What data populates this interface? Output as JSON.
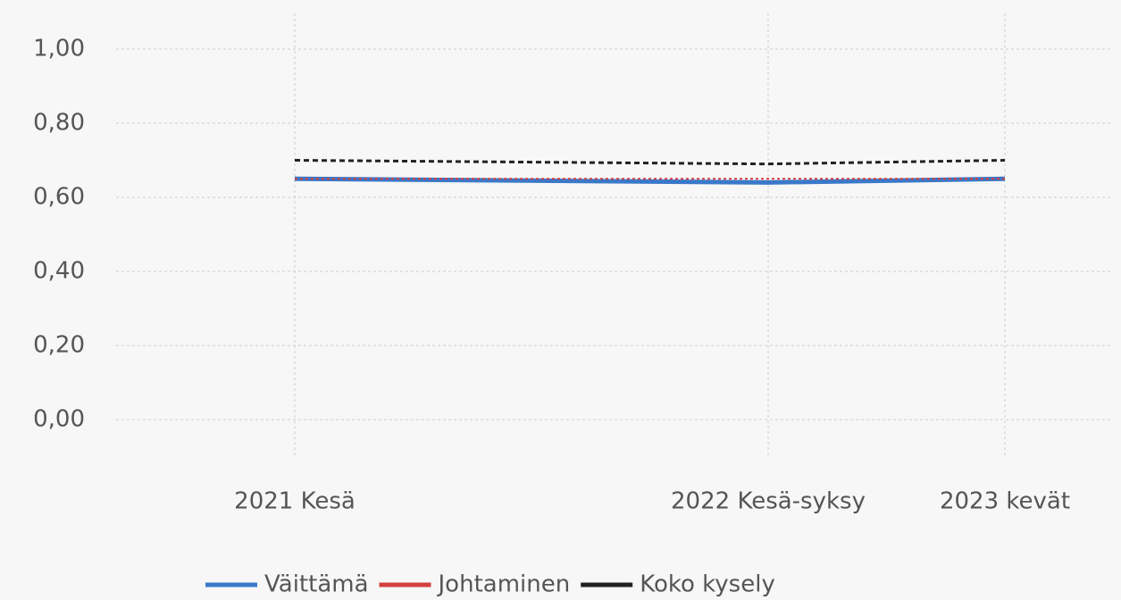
{
  "chart_data": {
    "type": "line",
    "categories": [
      "2021 Kesä",
      "2022 Kesä-syksy",
      "2023 kevät"
    ],
    "series": [
      {
        "name": "Väittämä",
        "color": "#3a78c9",
        "values": [
          0.65,
          0.64,
          0.65
        ]
      },
      {
        "name": "Johtaminen",
        "color": "#d43f3f",
        "values": [
          0.65,
          0.65,
          0.65
        ]
      },
      {
        "name": "Koko kysely",
        "color": "#222222",
        "values": [
          0.7,
          0.69,
          0.7
        ]
      }
    ],
    "ylim": [
      0,
      1
    ],
    "yticks": [
      {
        "value": 0,
        "label": "0,00"
      },
      {
        "value": 0.2,
        "label": "0,20"
      },
      {
        "value": 0.4,
        "label": "0,40"
      },
      {
        "value": 0.6,
        "label": "0,60"
      },
      {
        "value": 0.8,
        "label": "0,80"
      },
      {
        "value": 1,
        "label": "1,00"
      }
    ],
    "grid": true,
    "legend": "bottom"
  }
}
